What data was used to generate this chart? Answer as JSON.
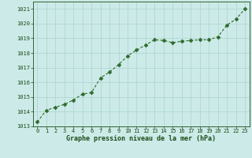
{
  "x": [
    0,
    1,
    2,
    3,
    4,
    5,
    6,
    7,
    8,
    9,
    10,
    11,
    12,
    13,
    14,
    15,
    16,
    17,
    18,
    19,
    20,
    21,
    22,
    23
  ],
  "y": [
    1013.3,
    1014.1,
    1014.3,
    1014.5,
    1014.8,
    1015.2,
    1015.3,
    1016.3,
    1016.7,
    1017.2,
    1017.8,
    1018.2,
    1018.55,
    1018.9,
    1018.85,
    1018.7,
    1018.8,
    1018.85,
    1018.9,
    1018.9,
    1019.1,
    1019.9,
    1020.3,
    1021.0
  ],
  "line_color": "#2d6a2d",
  "marker_color": "#2d6a2d",
  "bg_color": "#cceae7",
  "grid_color": "#aad4d0",
  "xlabel": "Graphe pression niveau de la mer (hPa)",
  "xlabel_color": "#1a4d1a",
  "tick_color": "#1a4d1a",
  "ylim": [
    1013,
    1021.5
  ],
  "xlim": [
    -0.5,
    23.5
  ],
  "yticks": [
    1013,
    1014,
    1015,
    1016,
    1017,
    1018,
    1019,
    1020,
    1021
  ],
  "xticks": [
    0,
    1,
    2,
    3,
    4,
    5,
    6,
    7,
    8,
    9,
    10,
    11,
    12,
    13,
    14,
    15,
    16,
    17,
    18,
    19,
    20,
    21,
    22,
    23
  ],
  "tick_fontsize": 5.0,
  "xlabel_fontsize": 6.0,
  "linewidth": 0.8,
  "markersize": 2.5
}
